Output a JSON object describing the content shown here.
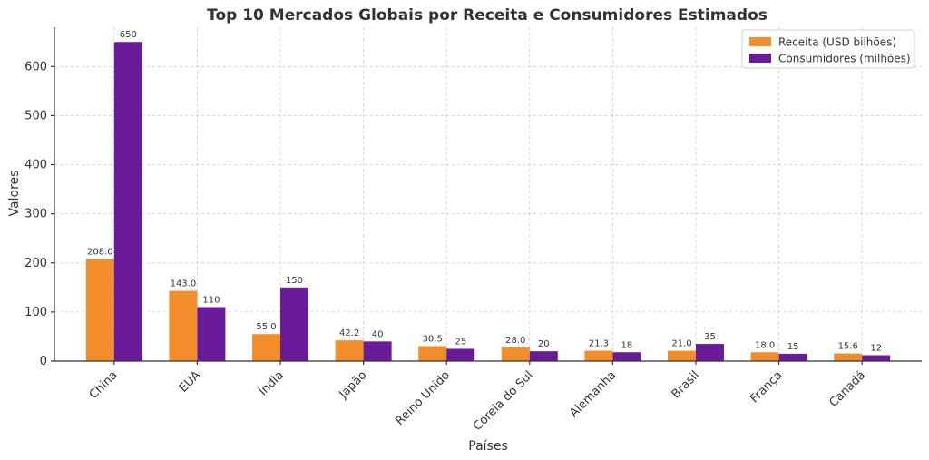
{
  "chart_data": {
    "type": "bar",
    "title": "Top 10 Mercados Globais por Receita e Consumidores Estimados",
    "xlabel": "Países",
    "ylabel": "Valores",
    "categories": [
      "China",
      "EUA",
      "Índia",
      "Japão",
      "Reino Unido",
      "Coreia do Sul",
      "Alemanha",
      "Brasil",
      "França",
      "Canadá"
    ],
    "series": [
      {
        "name": "Receita (USD bilhões)",
        "color": "#f28e2b",
        "values": [
          208.0,
          143.0,
          55.0,
          42.2,
          30.5,
          28.0,
          21.3,
          21.0,
          18.0,
          15.6
        ],
        "labels": [
          "208.0",
          "143.0",
          "55.0",
          "42.2",
          "30.5",
          "28.0",
          "21.3",
          "21.0",
          "18.0",
          "15.6"
        ]
      },
      {
        "name": "Consumidores (milhões)",
        "color": "#6a1b9a",
        "values": [
          650,
          110,
          150,
          40,
          25,
          20,
          18,
          35,
          15,
          12
        ],
        "labels": [
          "650",
          "110",
          "150",
          "40",
          "25",
          "20",
          "18",
          "35",
          "15",
          "12"
        ]
      }
    ],
    "yticks": [
      0,
      100,
      200,
      300,
      400,
      500,
      600
    ],
    "ylim": [
      0,
      680
    ],
    "grid": true,
    "legend_position": "top-right"
  }
}
